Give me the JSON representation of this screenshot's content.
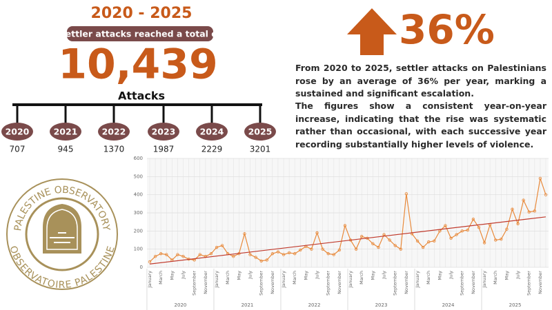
{
  "header": {
    "period": "2020 - 2025",
    "subtitle": "Settler attacks reached a total of",
    "total": "10,439",
    "unit": "Attacks"
  },
  "timeline": [
    {
      "year": "2020",
      "value": 707
    },
    {
      "year": "2021",
      "value": 945
    },
    {
      "year": "2022",
      "value": 1370
    },
    {
      "year": "2023",
      "value": 1987
    },
    {
      "year": "2024",
      "value": 2229
    },
    {
      "year": "2025",
      "value": 3201
    }
  ],
  "highlight": {
    "percent": "36%",
    "paragraphs": [
      "From 2020 to 2025, settler attacks on Palestinians rose by an average of 36% per year, marking a sustained and significant escalation.",
      "The figures show a consistent year-on-year increase, indicating that the rise was systematic rather than occasional, with each successive year recording substantially higher levels of violence."
    ]
  },
  "logo": {
    "top": "PALESTINE OBSERVATORY",
    "bottom": "OBSERVATOIRE PALESTINE"
  },
  "chart_data": {
    "type": "line",
    "categories": [
      "January",
      null,
      "March",
      null,
      "May",
      null,
      "July",
      null,
      "September",
      null,
      "November",
      null,
      "January",
      null,
      "March",
      null,
      "May",
      null,
      "July",
      null,
      "September",
      null,
      "November",
      null,
      "January",
      null,
      "March",
      null,
      "May",
      null,
      "July",
      null,
      "September",
      null,
      "November",
      null,
      "January",
      null,
      "March",
      null,
      "May",
      null,
      "July",
      null,
      "September",
      null,
      "November",
      null,
      "January",
      null,
      "March",
      null,
      "May",
      null,
      "July",
      null,
      "September",
      null,
      "November",
      null,
      "January",
      null,
      "March",
      null,
      "May",
      null,
      "July",
      null,
      "September",
      null,
      "November",
      null
    ],
    "groups": [
      "2020",
      "2021",
      "2022",
      "2023",
      "2024",
      "2025"
    ],
    "series": [
      {
        "color": "#e8893a",
        "values": [
          30,
          60,
          75,
          70,
          40,
          70,
          60,
          45,
          40,
          70,
          60,
          75,
          110,
          120,
          75,
          60,
          75,
          185,
          70,
          55,
          35,
          40,
          75,
          85,
          70,
          80,
          75,
          95,
          115,
          100,
          190,
          100,
          75,
          70,
          95,
          230,
          150,
          100,
          170,
          160,
          130,
          110,
          180,
          150,
          120,
          100,
          405,
          185,
          145,
          110,
          140,
          145,
          200,
          230,
          160,
          180,
          200,
          205,
          265,
          220,
          135,
          235,
          150,
          155,
          210,
          320,
          240,
          370,
          305,
          310,
          490,
          400
        ]
      }
    ],
    "trendline": {
      "color": "#c0392b",
      "values": [
        18,
        278
      ]
    },
    "ylim": [
      0,
      600
    ],
    "yticks": [
      0,
      100,
      200,
      300,
      400,
      500,
      600
    ],
    "grid": true
  }
}
